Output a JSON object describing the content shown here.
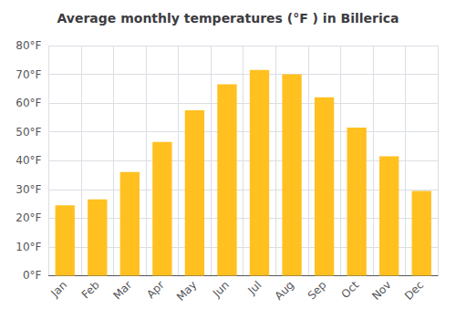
{
  "chart_data": {
    "type": "bar",
    "title": "Average monthly temperatures (°F ) in Billerica",
    "categories": [
      "Jan",
      "Feb",
      "Mar",
      "Apr",
      "May",
      "Jun",
      "Jul",
      "Aug",
      "Sep",
      "Oct",
      "Nov",
      "Dec"
    ],
    "values": [
      24.5,
      26.5,
      36,
      46.5,
      57.5,
      66.5,
      71.5,
      70,
      62,
      51.5,
      41.5,
      29.5
    ],
    "color": "#FFC020",
    "ylim": [
      0,
      80
    ],
    "yticks": [
      {
        "value": 0,
        "label": "0°F"
      },
      {
        "value": 10,
        "label": "10°F"
      },
      {
        "value": 20,
        "label": "20°F"
      },
      {
        "value": 30,
        "label": "30°F"
      },
      {
        "value": 40,
        "label": "40°F"
      },
      {
        "value": 50,
        "label": "50°F"
      },
      {
        "value": 60,
        "label": "60°F"
      },
      {
        "value": 70,
        "label": "70°F"
      },
      {
        "value": 80,
        "label": "80°F"
      }
    ],
    "grid": true
  }
}
